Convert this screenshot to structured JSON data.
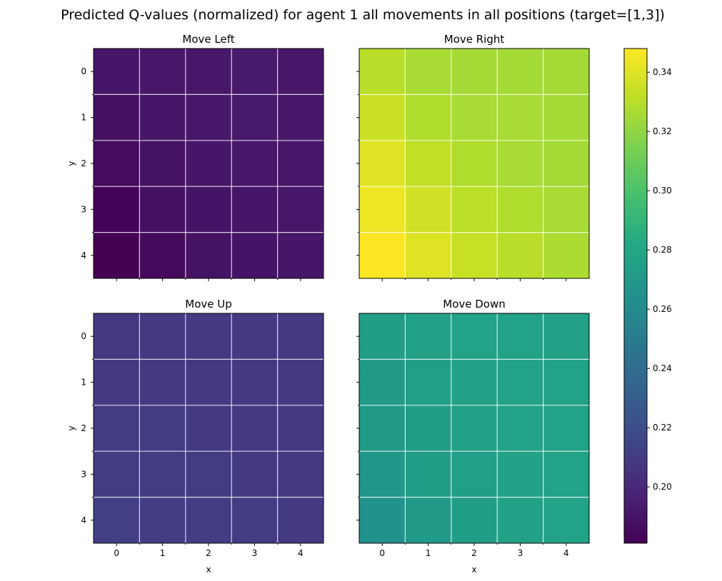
{
  "chart_data": {
    "type": "heatmap",
    "title": "Predicted Q-values (normalized) for agent 1 all movements in all positions (target=[1,3])",
    "xlabel": "x",
    "ylabel": "y",
    "x_ticks": [
      "0",
      "1",
      "2",
      "3",
      "4"
    ],
    "y_ticks": [
      "0",
      "1",
      "2",
      "3",
      "4"
    ],
    "colormap": "viridis",
    "colorbar": {
      "min": 0.181,
      "max": 0.348,
      "ticks": [
        "0.20",
        "0.22",
        "0.24",
        "0.26",
        "0.28",
        "0.30",
        "0.32",
        "0.34"
      ],
      "tick_values": [
        0.2,
        0.22,
        0.24,
        0.26,
        0.28,
        0.3,
        0.32,
        0.34
      ]
    },
    "grid": true,
    "panels": [
      {
        "name": "Move Left",
        "values": [
          [
            0.191,
            0.192,
            0.192,
            0.193,
            0.192
          ],
          [
            0.188,
            0.191,
            0.192,
            0.193,
            0.192
          ],
          [
            0.186,
            0.189,
            0.191,
            0.192,
            0.192
          ],
          [
            0.183,
            0.188,
            0.19,
            0.191,
            0.192
          ],
          [
            0.181,
            0.185,
            0.189,
            0.19,
            0.191
          ]
        ]
      },
      {
        "name": "Move Right",
        "values": [
          [
            0.33,
            0.326,
            0.325,
            0.325,
            0.325
          ],
          [
            0.335,
            0.328,
            0.326,
            0.326,
            0.325
          ],
          [
            0.34,
            0.332,
            0.328,
            0.326,
            0.325
          ],
          [
            0.344,
            0.336,
            0.331,
            0.328,
            0.326
          ],
          [
            0.348,
            0.34,
            0.334,
            0.33,
            0.327
          ]
        ]
      },
      {
        "name": "Move Up",
        "values": [
          [
            0.208,
            0.209,
            0.209,
            0.209,
            0.209
          ],
          [
            0.209,
            0.209,
            0.209,
            0.209,
            0.209
          ],
          [
            0.21,
            0.21,
            0.209,
            0.209,
            0.209
          ],
          [
            0.211,
            0.21,
            0.21,
            0.209,
            0.209
          ],
          [
            0.212,
            0.211,
            0.21,
            0.21,
            0.209
          ]
        ]
      },
      {
        "name": "Move Down",
        "values": [
          [
            0.274,
            0.276,
            0.277,
            0.277,
            0.276
          ],
          [
            0.272,
            0.275,
            0.276,
            0.277,
            0.277
          ],
          [
            0.27,
            0.274,
            0.276,
            0.277,
            0.277
          ],
          [
            0.268,
            0.273,
            0.275,
            0.276,
            0.277
          ],
          [
            0.265,
            0.271,
            0.274,
            0.276,
            0.277
          ]
        ]
      }
    ]
  }
}
